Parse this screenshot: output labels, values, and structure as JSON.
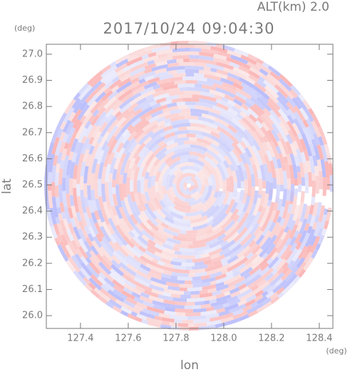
{
  "chart_data": {
    "type": "radar-image",
    "title": "2017/10/24 09:04:30",
    "altitude_label": "ALT(km) 2.0",
    "x_label": "lon",
    "y_label": "lat",
    "x_unit": "(deg)",
    "y_unit": "(deg)",
    "xlim": [
      127.257,
      128.457
    ],
    "ylim": [
      25.951,
      27.038
    ],
    "xticks": [
      127.4,
      127.6,
      127.8,
      {
        "value": 128,
        "label": "128.0"
      },
      128.2,
      128.4
    ],
    "yticks": [
      {
        "value": 26,
        "label": "26.0"
      },
      26.1,
      26.2,
      26.3,
      26.4,
      26.5,
      26.6,
      26.7,
      26.8,
      26.9,
      {
        "value": 27,
        "label": "27.0"
      }
    ]
  }
}
